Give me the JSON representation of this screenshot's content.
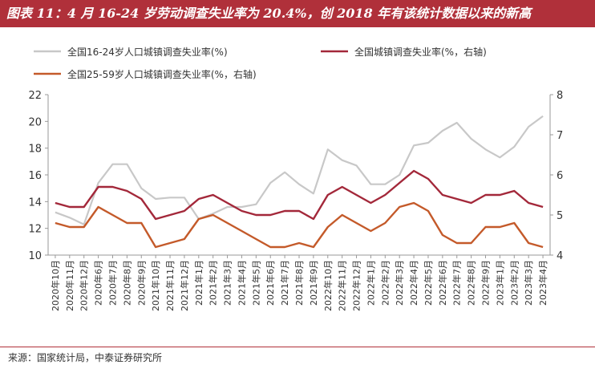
{
  "title": "图表 11：4 月 16-24 岁劳动调查失业率为 20.4%，创 2018 年有该统计数据以来的新高",
  "source": "来源：国家统计局，中泰证券研究所",
  "colors": {
    "title_bg": "#b0303a",
    "youth": "#c8c8c8",
    "urban": "#a3283a",
    "prime": "#c45a2a"
  },
  "chart_data": {
    "type": "line",
    "categories": [
      "2020年10月",
      "2020年11月",
      "2020年12月",
      "2020年6月",
      "2020年7月",
      "2020年8月",
      "2020年9月",
      "2021年10月",
      "2021年11月",
      "2021年12月",
      "2021年1月",
      "2021年2月",
      "2021年3月",
      "2021年4月",
      "2021年5月",
      "2021年6月",
      "2021年7月",
      "2021年8月",
      "2021年9月",
      "2022年10月",
      "2022年11月",
      "2022年12月",
      "2022年1月",
      "2022年2月",
      "2022年3月",
      "2022年4月",
      "2022年5月",
      "2022年6月",
      "2022年7月",
      "2022年8月",
      "2022年9月",
      "2023年1月",
      "2023年2月",
      "2023年3月",
      "2023年4月"
    ],
    "ylim_left": [
      10,
      22
    ],
    "yticks_left": [
      10,
      12,
      14,
      16,
      18,
      20,
      22
    ],
    "ylim_right": [
      4,
      8
    ],
    "yticks_right": [
      4,
      5,
      6,
      7,
      8
    ],
    "legend_position": "top",
    "series": [
      {
        "name": "全国16-24岁人口城镇调查失业率(%)",
        "axis": "left",
        "values": [
          13.2,
          12.8,
          12.3,
          15.4,
          16.8,
          16.8,
          15.0,
          14.2,
          14.3,
          14.3,
          12.7,
          13.1,
          13.6,
          13.6,
          13.8,
          15.4,
          16.2,
          15.3,
          14.6,
          17.9,
          17.1,
          16.7,
          15.3,
          15.3,
          16.0,
          18.2,
          18.4,
          19.3,
          19.9,
          18.7,
          17.9,
          17.3,
          18.1,
          19.6,
          20.4
        ]
      },
      {
        "name": "全国城镇调查失业率(%，右轴)",
        "axis": "right",
        "values": [
          5.3,
          5.2,
          5.2,
          5.7,
          5.7,
          5.6,
          5.4,
          4.9,
          5.0,
          5.1,
          5.4,
          5.5,
          5.3,
          5.1,
          5.0,
          5.0,
          5.1,
          5.1,
          4.9,
          5.5,
          5.7,
          5.5,
          5.3,
          5.5,
          5.8,
          6.1,
          5.9,
          5.5,
          5.4,
          5.3,
          5.5,
          5.5,
          5.6,
          5.3,
          5.2
        ]
      },
      {
        "name": "全国25-59岁人口城镇调查失业率(%，右轴)",
        "axis": "right",
        "values": [
          4.8,
          4.7,
          4.7,
          5.2,
          5.0,
          4.8,
          4.8,
          4.2,
          4.3,
          4.4,
          4.9,
          5.0,
          4.8,
          4.6,
          4.4,
          4.2,
          4.2,
          4.3,
          4.2,
          4.7,
          5.0,
          4.8,
          4.6,
          4.8,
          5.2,
          5.3,
          5.1,
          4.5,
          4.3,
          4.3,
          4.7,
          4.7,
          4.8,
          4.3,
          4.2
        ]
      }
    ]
  }
}
